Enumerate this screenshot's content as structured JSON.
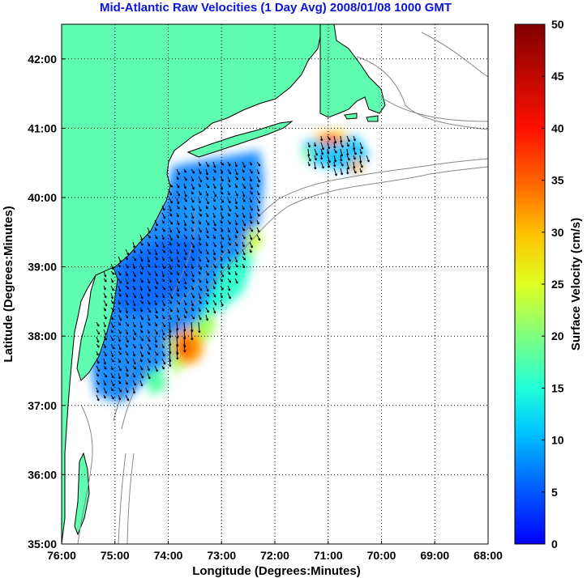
{
  "title": "Mid-Atlantic Raw Velocities (1 Day Avg) 2008/01/08 1000 GMT",
  "map": {
    "xlabel": "Longitude (Degrees:Minutes)",
    "ylabel": "Latitude (Degrees:Minutes)",
    "lon_range": [
      -76,
      -68
    ],
    "lat_range": [
      35,
      42.5
    ],
    "x_ticks": [
      {
        "value": -76,
        "label": "76:00"
      },
      {
        "value": -75,
        "label": "75:00"
      },
      {
        "value": -74,
        "label": "74:00"
      },
      {
        "value": -73,
        "label": "73:00"
      },
      {
        "value": -72,
        "label": "72:00"
      },
      {
        "value": -71,
        "label": "71:00"
      },
      {
        "value": -70,
        "label": "70:00"
      },
      {
        "value": -69,
        "label": "69:00"
      },
      {
        "value": -68,
        "label": "68:00"
      }
    ],
    "y_ticks": [
      {
        "value": 35,
        "label": "35:00"
      },
      {
        "value": 36,
        "label": "36:00"
      },
      {
        "value": 37,
        "label": "37:00"
      },
      {
        "value": 38,
        "label": "38:00"
      },
      {
        "value": 39,
        "label": "39:00"
      },
      {
        "value": 40,
        "label": "40:00"
      },
      {
        "value": 41,
        "label": "41:00"
      },
      {
        "value": 42,
        "label": "42:00"
      }
    ],
    "grid": "dotted",
    "land_color": "#5efdb0",
    "coast_color": "#000000",
    "isobath_color": "#888888"
  },
  "colorbar": {
    "label": "Surface Velocity (cm/s)",
    "min": 0,
    "max": 50,
    "ticks": [
      {
        "value": 0,
        "label": "0"
      },
      {
        "value": 5,
        "label": "5"
      },
      {
        "value": 10,
        "label": "10"
      },
      {
        "value": 15,
        "label": "15"
      },
      {
        "value": 20,
        "label": "20"
      },
      {
        "value": 25,
        "label": "25"
      },
      {
        "value": 30,
        "label": "30"
      },
      {
        "value": 35,
        "label": "35"
      },
      {
        "value": 40,
        "label": "40"
      },
      {
        "value": 45,
        "label": "45"
      },
      {
        "value": 50,
        "label": "50"
      }
    ],
    "colormap": "jet"
  }
}
